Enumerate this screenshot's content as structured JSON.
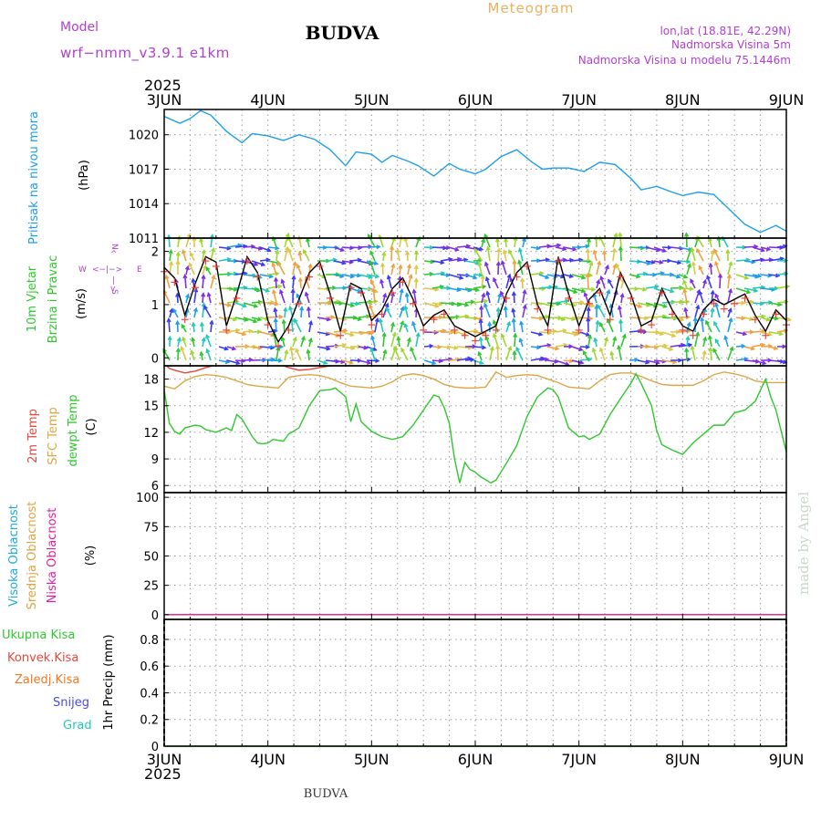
{
  "header": {
    "model_label": "Model",
    "model_name": "wrf−nmm_v3.9.1  e1km",
    "location": "BUDVA",
    "subtitle": "Meteogram",
    "coords": "lon,lat (18.81E, 42.29N)",
    "elevation": "Nadmorska Visina 5m",
    "model_elevation": "Nadmorska Visina u modelu 75.1446m",
    "year": "2025",
    "footer_location": "BUDVA",
    "watermark": "made by Angel"
  },
  "colors": {
    "pressure": "#1e9ee8",
    "temp2m": "#e8463c",
    "sfc_temp": "#dca645",
    "dewpoint": "#2ec82e",
    "wind_speed": "#000000",
    "wind_gust_marks": "#e8463c",
    "high_cloud": "#22aadd",
    "mid_cloud": "#dca645",
    "low_cloud": "#e0209a",
    "total_precip": "#2ec82e",
    "conv_precip": "#e8463c",
    "frozen_precip": "#f07820",
    "snow": "#4a4ae0",
    "hail": "#25c8b8",
    "purple_text": "#b040d0",
    "title_orange": "#e8b060"
  },
  "axis": {
    "days": [
      "3JUN",
      "4JUN",
      "5JUN",
      "6JUN",
      "7JUN",
      "8JUN",
      "9JUN"
    ]
  },
  "panels": {
    "pressure": {
      "label_main": "Pritisak na nivou mora",
      "unit": "(hPa)"
    },
    "wind": {
      "label_main": "10m Vjetar",
      "label_sub": "Brzina i Pravac",
      "unit": "(m/s)",
      "rose_n": "N",
      "rose_w": "W",
      "rose_e": "E",
      "rose_s": "S",
      "rose_h": "<−|−>",
      "rose_v1": "^",
      "rose_v2": "|",
      "rose_v3": "v"
    },
    "temp": {
      "label_2m": "2m Temp",
      "label_sfc": "SFC Temp",
      "label_dew": "dewpt Temp",
      "unit": "(C)"
    },
    "cloud": {
      "label_high": "Visoka Oblacnost",
      "label_mid": "Srednja Oblacnost",
      "label_low": "Niska Oblacnost",
      "unit": "(%)"
    },
    "precip": {
      "label_total": "Ukupna Kisa",
      "label_conv": "Konvek.Kisa",
      "label_frozen": "Zaledj.Kisa",
      "label_snow": "Snijeg",
      "label_hail": "Grad",
      "unit": "1hr Precip (mm)"
    }
  },
  "chart_data": [
    {
      "type": "line",
      "panel": "pressure",
      "ylabel": "(hPa)",
      "yticks": [
        "1020",
        "1017",
        "1014",
        "1011"
      ],
      "ylim": [
        1011,
        1022.2
      ],
      "x_unit": "days since 3JUN 00Z",
      "series": [
        {
          "name": "Pritisak na nivou mora",
          "x": [
            0,
            0.15,
            0.25,
            0.35,
            0.45,
            0.6,
            0.75,
            0.85,
            1.0,
            1.15,
            1.3,
            1.45,
            1.6,
            1.75,
            1.85,
            2.0,
            2.1,
            2.2,
            2.35,
            2.45,
            2.6,
            2.75,
            2.85,
            3.0,
            3.1,
            3.25,
            3.4,
            3.55,
            3.65,
            3.75,
            3.9,
            4.05,
            4.2,
            4.35,
            4.5,
            4.6,
            4.75,
            4.9,
            5.0,
            5.15,
            5.3,
            5.45,
            5.6,
            5.75,
            5.9,
            6.0
          ],
          "y": [
            1021.6,
            1021.0,
            1021.4,
            1022.1,
            1021.7,
            1020.3,
            1019.3,
            1020.1,
            1019.9,
            1019.5,
            1020.0,
            1019.6,
            1018.7,
            1017.3,
            1018.5,
            1018.3,
            1017.6,
            1018.2,
            1017.7,
            1017.3,
            1016.4,
            1017.5,
            1017.0,
            1016.6,
            1017.0,
            1018.1,
            1018.7,
            1017.6,
            1017.0,
            1017.1,
            1017.1,
            1016.8,
            1017.6,
            1017.4,
            1016.2,
            1015.2,
            1015.5,
            1015.0,
            1014.7,
            1015.0,
            1014.8,
            1013.5,
            1012.2,
            1011.5,
            1012.1,
            1011.6
          ]
        }
      ]
    },
    {
      "type": "line",
      "panel": "wind",
      "ylabel": "(m/s)",
      "yticks": [
        "2",
        "1",
        "0"
      ],
      "ylim": [
        -0.15,
        2.25
      ],
      "x_unit": "days since 3JUN 00Z",
      "series": [
        {
          "name": "10m Vjetar Brzina",
          "x": [
            0,
            0.1,
            0.2,
            0.3,
            0.4,
            0.5,
            0.6,
            0.7,
            0.8,
            0.9,
            1.0,
            1.1,
            1.2,
            1.3,
            1.4,
            1.5,
            1.6,
            1.7,
            1.8,
            1.9,
            2.0,
            2.1,
            2.2,
            2.3,
            2.4,
            2.5,
            2.6,
            2.7,
            2.8,
            2.9,
            3.0,
            3.1,
            3.2,
            3.3,
            3.4,
            3.5,
            3.6,
            3.7,
            3.8,
            3.9,
            4.0,
            4.1,
            4.2,
            4.3,
            4.4,
            4.5,
            4.6,
            4.7,
            4.8,
            4.9,
            5.0,
            5.1,
            5.2,
            5.3,
            5.4,
            5.5,
            5.6,
            5.7,
            5.8,
            5.9,
            6.0
          ],
          "y": [
            1.7,
            1.5,
            0.8,
            1.4,
            1.9,
            1.8,
            0.6,
            1.2,
            1.9,
            1.6,
            0.7,
            0.3,
            0.6,
            1.1,
            1.6,
            1.8,
            1.2,
            0.5,
            1.4,
            1.3,
            0.7,
            0.9,
            1.3,
            1.5,
            1.1,
            0.6,
            0.8,
            0.9,
            0.6,
            0.5,
            0.4,
            0.5,
            0.6,
            1.2,
            1.6,
            1.8,
            1.0,
            0.6,
            1.9,
            1.2,
            0.6,
            1.1,
            1.3,
            0.8,
            1.6,
            1.2,
            0.6,
            0.7,
            1.3,
            0.9,
            0.6,
            0.5,
            0.9,
            1.1,
            1.0,
            1.1,
            1.2,
            0.8,
            0.5,
            0.9,
            0.7
          ]
        }
      ]
    },
    {
      "type": "line",
      "panel": "temperature",
      "ylabel": "(C)",
      "yticks": [
        "18",
        "15",
        "12",
        "9",
        "6"
      ],
      "ylim": [
        5.2,
        19.5
      ],
      "x_unit": "days since 3JUN 00Z",
      "series": [
        {
          "name": "2m Temp",
          "x": [
            0,
            0.05,
            0.1,
            0.2,
            0.3,
            0.4,
            0.5,
            0.6,
            0.7,
            0.8
          ],
          "y": [
            19.8,
            19.2,
            19.0,
            18.7,
            18.9,
            19.3,
            19.6,
            19.7,
            19.8,
            19.9
          ]
        },
        {
          "name": "2m Temp",
          "x": [
            1.1,
            1.2,
            1.3,
            1.4,
            1.5,
            1.6,
            1.7,
            1.8,
            1.9
          ],
          "y": [
            19.7,
            19.3,
            19.0,
            19.1,
            19.3,
            19.5,
            19.7,
            19.8,
            19.9
          ]
        },
        {
          "name": "SFC Temp",
          "x": [
            0,
            0.1,
            0.2,
            0.3,
            0.4,
            0.5,
            0.6,
            0.7,
            0.8,
            0.9,
            1.0,
            1.1,
            1.2,
            1.3,
            1.4,
            1.5,
            1.6,
            1.7,
            1.8,
            1.9,
            2.0,
            2.1,
            2.2,
            2.3,
            2.4,
            2.5,
            2.6,
            2.7,
            2.8,
            2.9,
            3.0,
            3.1,
            3.2,
            3.3,
            3.4,
            3.5,
            3.6,
            3.7,
            3.8,
            3.9,
            4.0,
            4.1,
            4.2,
            4.3,
            4.4,
            4.5,
            4.6,
            4.7,
            4.8,
            4.9,
            5.0,
            5.1,
            5.2,
            5.3,
            5.4,
            5.5,
            5.6,
            5.7,
            5.8,
            5.9,
            6.0
          ],
          "y": [
            17.2,
            16.9,
            17.8,
            18.3,
            18.5,
            18.4,
            18.2,
            17.8,
            17.4,
            17.2,
            17.1,
            17.0,
            18.2,
            18.4,
            18.5,
            18.4,
            18.1,
            17.6,
            17.2,
            17.1,
            17.0,
            17.2,
            17.7,
            18.4,
            18.6,
            18.4,
            18.0,
            17.4,
            17.1,
            17.0,
            17.0,
            17.1,
            18.8,
            18.2,
            18.4,
            18.5,
            18.4,
            18.0,
            17.6,
            17.1,
            17.0,
            16.9,
            17.8,
            18.5,
            18.7,
            18.7,
            18.3,
            17.8,
            17.4,
            17.3,
            17.3,
            17.3,
            17.8,
            18.5,
            18.8,
            18.6,
            18.3,
            17.8,
            17.6,
            17.6,
            17.6
          ]
        },
        {
          "name": "dewpt Temp",
          "x": [
            0,
            0.05,
            0.1,
            0.15,
            0.2,
            0.3,
            0.35,
            0.4,
            0.5,
            0.6,
            0.65,
            0.7,
            0.75,
            0.8,
            0.85,
            0.9,
            0.95,
            1.0,
            1.05,
            1.15,
            1.2,
            1.3,
            1.4,
            1.5,
            1.6,
            1.65,
            1.75,
            1.8,
            1.85,
            1.9,
            2.0,
            2.1,
            2.2,
            2.3,
            2.4,
            2.5,
            2.6,
            2.65,
            2.7,
            2.75,
            2.8,
            2.85,
            2.9,
            2.95,
            3.0,
            3.05,
            3.15,
            3.2,
            3.3,
            3.4,
            3.5,
            3.6,
            3.7,
            3.75,
            3.8,
            3.9,
            4.0,
            4.05,
            4.1,
            4.2,
            4.3,
            4.4,
            4.5,
            4.55,
            4.6,
            4.7,
            4.75,
            4.8,
            4.9,
            5.0,
            5.1,
            5.2,
            5.3,
            5.4,
            5.5,
            5.6,
            5.7,
            5.8,
            5.85,
            5.9,
            6.0
          ],
          "y": [
            16.8,
            13.0,
            12.1,
            11.8,
            12.5,
            12.8,
            12.7,
            12.3,
            12.0,
            12.5,
            12.2,
            14.0,
            13.5,
            12.5,
            11.5,
            10.8,
            10.7,
            10.8,
            11.2,
            11.0,
            11.8,
            12.5,
            15.0,
            16.7,
            16.8,
            17.0,
            16.0,
            13.2,
            15.2,
            13.2,
            12.1,
            11.5,
            11.2,
            11.5,
            12.8,
            14.5,
            16.2,
            16.0,
            14.8,
            13.0,
            9.0,
            6.3,
            8.6,
            7.8,
            7.5,
            7.0,
            6.3,
            6.6,
            8.5,
            10.5,
            13.8,
            16.0,
            17.0,
            16.8,
            16.0,
            12.5,
            11.5,
            11.6,
            11.2,
            11.8,
            14.0,
            15.8,
            17.5,
            18.6,
            17.5,
            15.0,
            12.2,
            10.6,
            10.0,
            9.5,
            10.8,
            11.8,
            12.8,
            12.8,
            14.2,
            14.5,
            15.5,
            18.0,
            16.0,
            14.5,
            9.8
          ]
        }
      ]
    },
    {
      "type": "line",
      "panel": "cloud_cover",
      "ylabel": "(%)",
      "yticks": [
        "100",
        "75",
        "50",
        "25",
        "0"
      ],
      "ylim": [
        -4,
        104
      ],
      "series": [
        {
          "name": "Visoka Oblacnost",
          "x": [
            0,
            6
          ],
          "y": [
            0,
            0
          ]
        },
        {
          "name": "Srednja Oblacnost",
          "x": [
            0,
            6
          ],
          "y": [
            0,
            0
          ]
        },
        {
          "name": "Niska Oblacnost",
          "x": [
            0,
            6
          ],
          "y": [
            0,
            0
          ]
        }
      ]
    },
    {
      "type": "line",
      "panel": "precipitation",
      "ylabel": "1hr Precip (mm)",
      "yticks": [
        "0.8",
        "0.6",
        "0.4",
        "0.2",
        "0"
      ],
      "ylim": [
        0,
        0.95
      ],
      "series": [
        {
          "name": "Ukupna Kisa",
          "x": [
            0,
            6
          ],
          "y": [
            0,
            0
          ]
        }
      ]
    }
  ]
}
